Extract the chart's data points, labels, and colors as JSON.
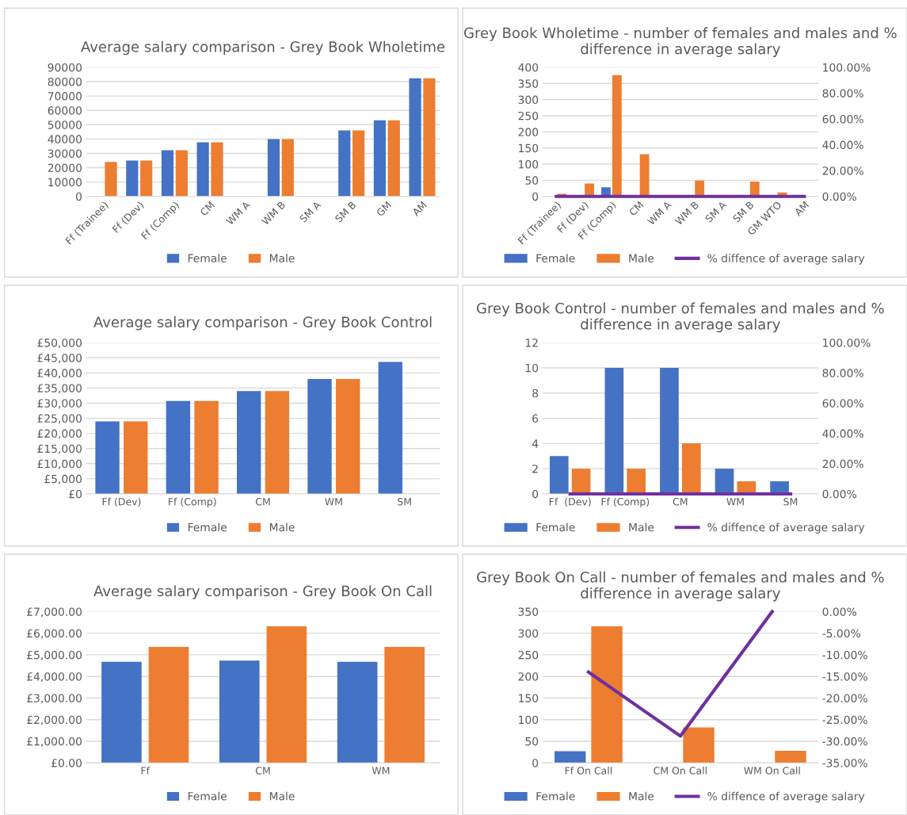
{
  "chart_data": [
    {
      "type": "bar",
      "title": "Average salary comparison - Grey Book Wholetime",
      "categories": [
        "Ff (Trainee)",
        "Ff (Dev)",
        "Ff (Comp)",
        "CM",
        "WM A",
        "WM B",
        "SM A",
        "SM B",
        "GM",
        "AM"
      ],
      "series": [
        {
          "name": "Female",
          "color": "#4472c4",
          "values": [
            null,
            25000,
            32200,
            37700,
            null,
            40000,
            null,
            46000,
            53000,
            82300
          ]
        },
        {
          "name": "Male",
          "color": "#ed7d31",
          "values": [
            24000,
            25000,
            32200,
            37700,
            null,
            40000,
            null,
            46000,
            53000,
            82300
          ]
        }
      ],
      "ylim": [
        0,
        90000
      ],
      "yticks": [
        0,
        10000,
        20000,
        30000,
        40000,
        50000,
        60000,
        70000,
        80000,
        90000
      ],
      "grid": "y",
      "legend": "bottom"
    },
    {
      "type": "bar",
      "title": "Grey Book Wholetime - number of females and males and % difference in average salary",
      "categories": [
        "Ff (Trainee)",
        "Ff (Dev)",
        "Ff (Comp)",
        "CM",
        "WM A",
        "WM B",
        "SM A",
        "SM B",
        "GM WTO",
        "AM"
      ],
      "series": [
        {
          "name": "Female",
          "color": "#4472c4",
          "values": [
            null,
            null,
            28,
            null,
            null,
            null,
            null,
            null,
            null,
            null
          ]
        },
        {
          "name": "Male",
          "color": "#ed7d31",
          "values": [
            8,
            40,
            376,
            131,
            null,
            49,
            null,
            46,
            12,
            null
          ]
        },
        {
          "name": "% diffence of average salary",
          "type": "line",
          "axis": "y2",
          "color": "#7030a0",
          "values": [
            0,
            0,
            0,
            0,
            0,
            0,
            0,
            0,
            0,
            0
          ]
        }
      ],
      "ylim": [
        0,
        400
      ],
      "yticks": [
        0,
        50,
        100,
        150,
        200,
        250,
        300,
        350,
        400
      ],
      "y2lim": [
        0,
        100
      ],
      "y2ticks": [
        {
          "value": 0,
          "label": "0.00%"
        },
        {
          "value": 20,
          "label": "20.00%"
        },
        {
          "value": 40,
          "label": "40.00%"
        },
        {
          "value": 60,
          "label": "60.00%"
        },
        {
          "value": 80,
          "label": "80.00%"
        },
        {
          "value": 100,
          "label": "100.00%"
        }
      ],
      "grid": "y",
      "legend": "bottom",
      "marker": "none"
    },
    {
      "type": "bar",
      "title": "Average salary comparison - Grey Book Control",
      "categories": [
        "Ff (Dev)",
        "Ff (Comp)",
        "CM",
        "WM",
        "SM"
      ],
      "series": [
        {
          "name": "Female",
          "color": "#4472c4",
          "values": [
            24000,
            30700,
            34000,
            38000,
            43600
          ]
        },
        {
          "name": "Male",
          "color": "#ed7d31",
          "values": [
            24000,
            30700,
            34000,
            38000,
            null
          ]
        }
      ],
      "ylim": [
        0,
        50000
      ],
      "yticks": [
        {
          "value": 0,
          "label": "£0"
        },
        {
          "value": 5000,
          "label": "£5,000"
        },
        {
          "value": 10000,
          "label": "£10,000"
        },
        {
          "value": 15000,
          "label": "£15,000"
        },
        {
          "value": 20000,
          "label": "£20,000"
        },
        {
          "value": 25000,
          "label": "£25,000"
        },
        {
          "value": 30000,
          "label": "£30,000"
        },
        {
          "value": 35000,
          "label": "£35,000"
        },
        {
          "value": 40000,
          "label": "£40,000"
        },
        {
          "value": 45000,
          "label": "£45,000"
        },
        {
          "value": 50000,
          "label": "£50,000"
        }
      ],
      "grid": "y",
      "legend": "bottom"
    },
    {
      "type": "bar",
      "title": "Grey Book Control - number of females and males and % difference in average salary",
      "categories": [
        "Ff  (Dev)",
        "Ff (Comp)",
        "CM",
        "WM",
        "SM"
      ],
      "series": [
        {
          "name": "Female",
          "color": "#4472c4",
          "values": [
            3,
            10,
            10,
            2,
            1
          ]
        },
        {
          "name": "Male",
          "color": "#ed7d31",
          "values": [
            2,
            2,
            4,
            1,
            null
          ]
        },
        {
          "name": "% diffence of average salary",
          "type": "line",
          "axis": "y2",
          "color": "#7030a0",
          "values": [
            0,
            0,
            0,
            0,
            0
          ]
        }
      ],
      "ylim": [
        0,
        12
      ],
      "yticks": [
        0,
        2,
        4,
        6,
        8,
        10,
        12
      ],
      "y2lim": [
        0,
        100
      ],
      "y2ticks": [
        {
          "value": 0,
          "label": "0.00%"
        },
        {
          "value": 20,
          "label": "20.00%"
        },
        {
          "value": 40,
          "label": "40.00%"
        },
        {
          "value": 60,
          "label": "60.00%"
        },
        {
          "value": 80,
          "label": "80.00%"
        },
        {
          "value": 100,
          "label": "100.00%"
        }
      ],
      "grid": "y",
      "legend": "bottom",
      "marker": "none"
    },
    {
      "type": "bar",
      "title": "Average salary comparison - Grey Book On Call",
      "categories": [
        "Ff",
        "CM",
        "WM"
      ],
      "series": [
        {
          "name": "Female",
          "color": "#4472c4",
          "values": [
            4680,
            4730,
            4680
          ]
        },
        {
          "name": "Male",
          "color": "#ed7d31",
          "values": [
            5360,
            6320,
            5360
          ]
        }
      ],
      "ylim": [
        0,
        7000
      ],
      "yticks": [
        {
          "value": 0,
          "label": "£0.00"
        },
        {
          "value": 1000,
          "label": "£1,000.00"
        },
        {
          "value": 2000,
          "label": "£2,000.00"
        },
        {
          "value": 3000,
          "label": "£3,000.00"
        },
        {
          "value": 4000,
          "label": "£4,000.00"
        },
        {
          "value": 5000,
          "label": "£5,000.00"
        },
        {
          "value": 6000,
          "label": "£6,000.00"
        },
        {
          "value": 7000,
          "label": "£7,000.00"
        }
      ],
      "grid": "y",
      "legend": "bottom"
    },
    {
      "type": "bar",
      "title": "Grey Book On Call - number of females and males and % difference in average salary",
      "categories": [
        "Ff On Call",
        "CM On Call",
        "WM On Call"
      ],
      "series": [
        {
          "name": "Female",
          "color": "#4472c4",
          "values": [
            27,
            null,
            null
          ]
        },
        {
          "name": "Male",
          "color": "#ed7d31",
          "values": [
            316,
            82,
            28
          ]
        },
        {
          "name": "% diffence of average salary",
          "type": "line",
          "axis": "y2",
          "color": "#7030a0",
          "values": [
            -14,
            -28.8,
            0
          ]
        }
      ],
      "ylim": [
        0,
        350
      ],
      "yticks": [
        0,
        50,
        100,
        150,
        200,
        250,
        300,
        350
      ],
      "y2lim": [
        -35,
        0
      ],
      "y2ticks": [
        {
          "value": -35,
          "label": "-35.00%"
        },
        {
          "value": -30,
          "label": "-30.00%"
        },
        {
          "value": -25,
          "label": "-25.00%"
        },
        {
          "value": -20,
          "label": "-20.00%"
        },
        {
          "value": -15,
          "label": "-15.00%"
        },
        {
          "value": -10,
          "label": "-10.00%"
        },
        {
          "value": -5,
          "label": "-5.00%"
        },
        {
          "value": 0,
          "label": "0.00%"
        }
      ],
      "grid": "y",
      "legend": "bottom",
      "marker": "none"
    }
  ]
}
